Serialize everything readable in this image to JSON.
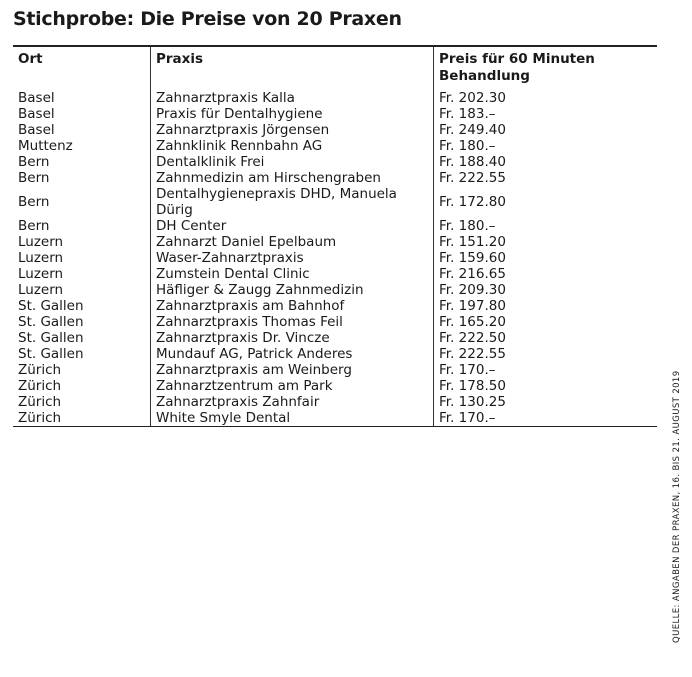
{
  "header": {
    "title": "Stichprobe: Die Preise von 20 Praxen"
  },
  "table": {
    "columns": [
      "Ort",
      "Praxis",
      "Preis für 60 Minuten Behandlung"
    ],
    "rows": [
      [
        "Basel",
        "Zahnarztpraxis Kalla",
        "Fr. 202.30"
      ],
      [
        "Basel",
        "Praxis für Dentalhygiene",
        "Fr. 183.–"
      ],
      [
        "Basel",
        "Zahnarztpraxis Jörgensen",
        "Fr. 249.40"
      ],
      [
        "Muttenz",
        "Zahnklinik Rennbahn AG",
        "Fr. 180.–"
      ],
      [
        "Bern",
        "Dentalklinik Frei",
        "Fr. 188.40"
      ],
      [
        "Bern",
        "Zahnmedizin am Hirschengraben",
        "Fr. 222.55"
      ],
      [
        "Bern",
        "Dentalhygienepraxis DHD, Manuela Dürig",
        "Fr. 172.80"
      ],
      [
        "Bern",
        "DH Center",
        "Fr. 180.–"
      ],
      [
        "Luzern",
        "Zahnarzt Daniel Epelbaum",
        "Fr. 151.20"
      ],
      [
        "Luzern",
        "Waser-Zahnarztpraxis",
        "Fr. 159.60"
      ],
      [
        "Luzern",
        "Zumstein Dental Clinic",
        "Fr. 216.65"
      ],
      [
        "Luzern",
        "Häfliger & Zaugg Zahnmedizin",
        "Fr. 209.30"
      ],
      [
        "St. Gallen",
        "Zahnarztpraxis am Bahnhof",
        "Fr. 197.80"
      ],
      [
        "St. Gallen",
        "Zahnarztpraxis Thomas Feil",
        "Fr. 165.20"
      ],
      [
        "St. Gallen",
        "Zahnarztpraxis Dr. Vincze",
        "Fr. 222.50"
      ],
      [
        "St. Gallen",
        "Mundauf AG, Patrick Anderes",
        "Fr. 222.55"
      ],
      [
        "Zürich",
        "Zahnarztpraxis am Weinberg",
        "Fr. 170.–"
      ],
      [
        "Zürich",
        "Zahnarztzentrum am Park",
        "Fr. 178.50"
      ],
      [
        "Zürich",
        "Zahnarztpraxis Zahnfair",
        "Fr. 130.25"
      ],
      [
        "Zürich",
        "White Smyle Dental",
        "Fr. 170.–"
      ]
    ]
  },
  "footer": {
    "source": "QUELLE: ANGABEN DER PRAXEN, 16. BIS 21. AUGUST 2019"
  }
}
